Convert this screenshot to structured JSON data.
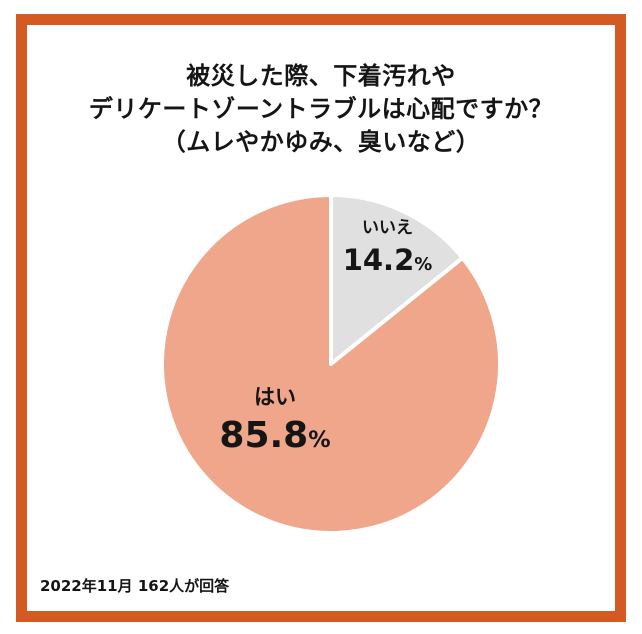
{
  "colors": {
    "border": "#D35A22",
    "yes": "#EFA68A",
    "no": "#E0E0E0",
    "separator": "#FFFFFF",
    "text": "#151515"
  },
  "title": {
    "lines": [
      "被災した際、下着汚れや",
      "デリケートゾーントラブルは心配ですか？",
      "（ムレやかゆみ、臭いなど）"
    ]
  },
  "slices": [
    {
      "label": "はい",
      "value": "85.8",
      "unit": "%"
    },
    {
      "label": "いいえ",
      "value": "14.2",
      "unit": "%"
    }
  ],
  "footer": {
    "note": "2022年11月 162人が回答"
  },
  "chart_data": {
    "type": "pie",
    "title": "被災した際、下着汚れやデリケートゾーントラブルは心配ですか？（ムレやかゆみ、臭いなど）",
    "categories": [
      "はい",
      "いいえ"
    ],
    "values": [
      85.8,
      14.2
    ],
    "unit": "%",
    "colors": [
      "#EFA68A",
      "#E0E0E0"
    ],
    "start_angle": "12 o'clock, clockwise; いいえ first",
    "annotations": [
      "2022年11月 162人が回答"
    ],
    "legend": "none (labels inside slices)"
  }
}
